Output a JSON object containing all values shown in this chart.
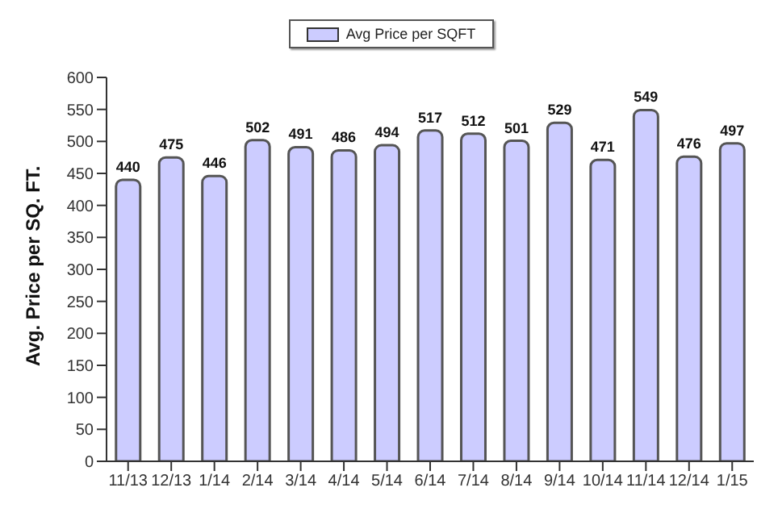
{
  "chart_data": {
    "type": "bar",
    "ylabel": "Avg. Price per SQ. FT.",
    "categories": [
      "11/13",
      "12/13",
      "1/14",
      "2/14",
      "3/14",
      "4/14",
      "5/14",
      "6/14",
      "7/14",
      "8/14",
      "9/14",
      "10/14",
      "11/14",
      "12/14",
      "1/15"
    ],
    "series": [
      {
        "name": "Avg Price per SQFT",
        "color": "#ccccff",
        "values": [
          440,
          475,
          446,
          502,
          491,
          486,
          494,
          517,
          512,
          501,
          529,
          471,
          549,
          476,
          497
        ]
      }
    ],
    "ylim": [
      0,
      600
    ],
    "yticks": [
      0,
      50,
      100,
      150,
      200,
      250,
      300,
      350,
      400,
      450,
      500,
      550,
      600
    ],
    "data_labels": true,
    "legend": "top",
    "grid": false
  }
}
